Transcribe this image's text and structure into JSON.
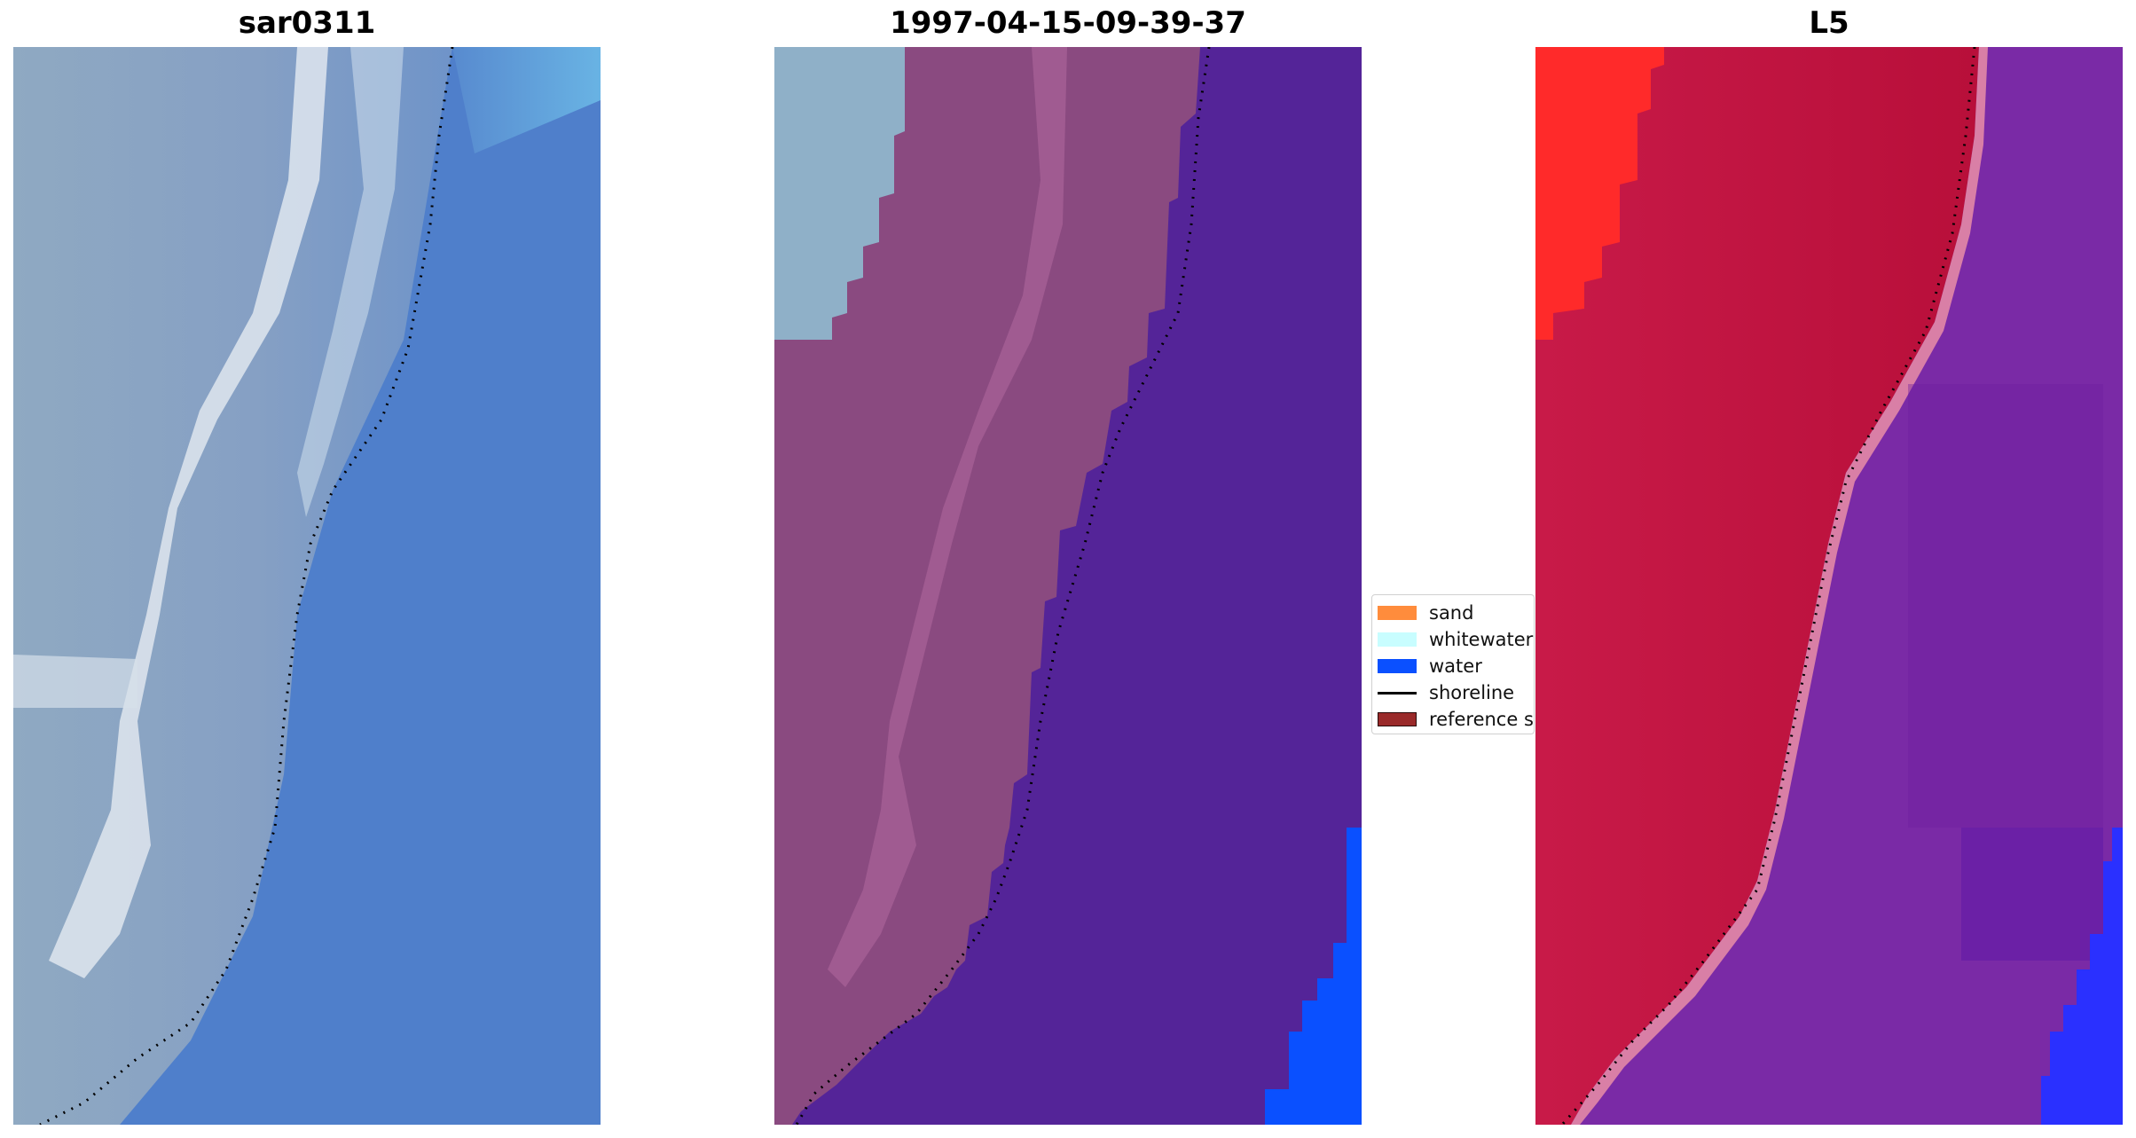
{
  "panels": [
    {
      "title": "sar0311"
    },
    {
      "title": "1997-04-15-09-39-37"
    },
    {
      "title": "L5"
    }
  ],
  "legend": {
    "items": [
      {
        "label": "sand",
        "color": "#ff8c3c"
      },
      {
        "label": "whitewater",
        "color": "#c8fdff"
      },
      {
        "label": "water",
        "color": "#0a50ff"
      },
      {
        "label": "shoreline",
        "color": "#000000"
      },
      {
        "label": "reference s",
        "color": "#9a2a2a"
      }
    ]
  },
  "colors": {
    "rgb_water": "#4f7fcb",
    "rgb_land": "#90a8c4",
    "rgb_surf": "#e8eef4",
    "class_land": "#8a4a80",
    "class_water": "#542498",
    "class_whitewater": "#8fb0c8",
    "class_open_water": "#0a50ff",
    "index_land": "#c8143c",
    "index_water": "#7a2aa6",
    "index_bright": "#ff2a2a",
    "index_open_water": "#2a30ff",
    "shoreline": "#000000"
  }
}
